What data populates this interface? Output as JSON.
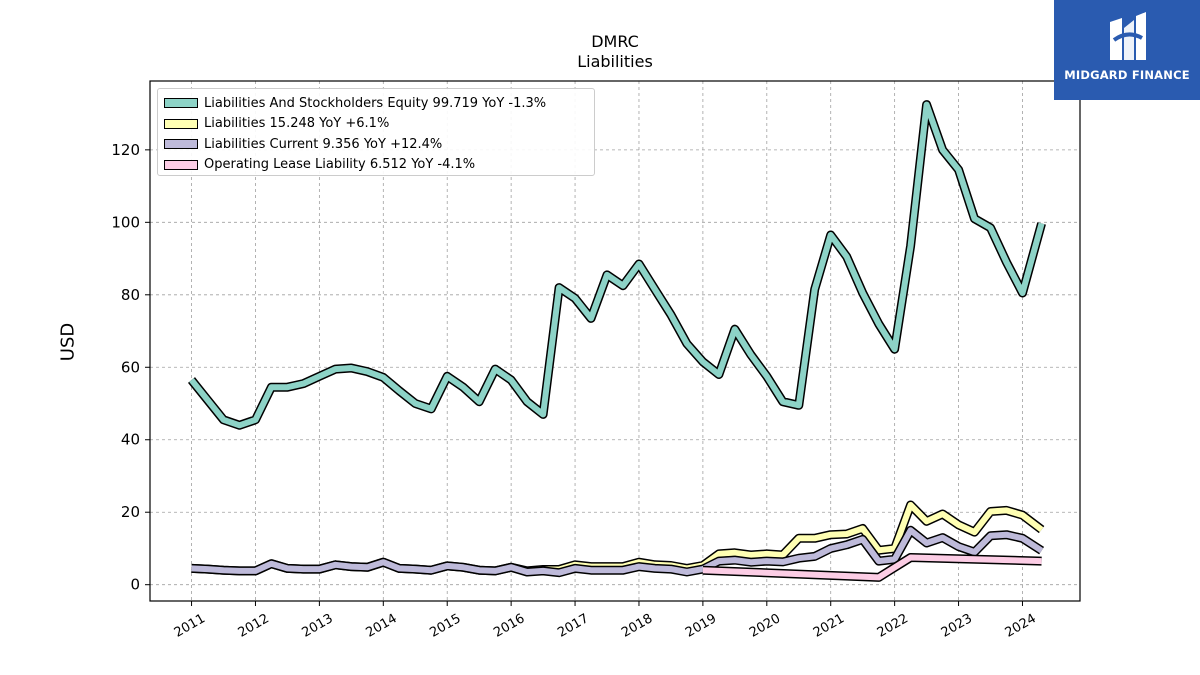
{
  "logo": {
    "text": "MIDGARD FINANCE",
    "icon": "midgard-m-logo-icon",
    "bg_color": "#2a5bb0"
  },
  "chart_data": {
    "type": "line",
    "title": "DMRC",
    "subtitle": "Liabilities",
    "xlabel": "",
    "ylabel": "USD",
    "xlim": [
      2010.35,
      2024.9
    ],
    "ylim": [
      -4.5,
      139
    ],
    "x_ticks": [
      2011,
      2012,
      2013,
      2014,
      2015,
      2016,
      2017,
      2018,
      2019,
      2020,
      2021,
      2022,
      2023,
      2024
    ],
    "x_tick_labels": [
      "2011",
      "2012",
      "2013",
      "2014",
      "2015",
      "2016",
      "2017",
      "2018",
      "2019",
      "2020",
      "2021",
      "2022",
      "2023",
      "2024"
    ],
    "y_ticks": [
      0,
      20,
      40,
      60,
      80,
      100,
      120
    ],
    "y_tick_labels": [
      "0",
      "20",
      "40",
      "60",
      "80",
      "100",
      "120"
    ],
    "grid": true,
    "legend_position": "top-left",
    "series": [
      {
        "name": "Liabilities And Stockholders Equity  99.719 YoY -1.3%",
        "color": "#8dd3c7",
        "points": [
          [
            2011.0,
            56.5
          ],
          [
            2011.25,
            51.0
          ],
          [
            2011.5,
            45.5
          ],
          [
            2011.75,
            44.0
          ],
          [
            2012.0,
            45.5
          ],
          [
            2012.25,
            54.5
          ],
          [
            2012.5,
            54.5
          ],
          [
            2012.75,
            55.5
          ],
          [
            2013.0,
            57.5
          ],
          [
            2013.25,
            59.5
          ],
          [
            2013.5,
            59.8
          ],
          [
            2013.75,
            58.8
          ],
          [
            2014.0,
            57.2
          ],
          [
            2014.25,
            53.5
          ],
          [
            2014.5,
            50.0
          ],
          [
            2014.75,
            48.5
          ],
          [
            2015.0,
            57.5
          ],
          [
            2015.25,
            54.5
          ],
          [
            2015.5,
            50.5
          ],
          [
            2015.75,
            59.5
          ],
          [
            2016.0,
            56.5
          ],
          [
            2016.25,
            50.5
          ],
          [
            2016.5,
            47.0
          ],
          [
            2016.75,
            82.0
          ],
          [
            2017.0,
            79.0
          ],
          [
            2017.25,
            73.5
          ],
          [
            2017.5,
            85.5
          ],
          [
            2017.75,
            82.5
          ],
          [
            2018.0,
            88.5
          ],
          [
            2018.25,
            81.5
          ],
          [
            2018.5,
            74.5
          ],
          [
            2018.75,
            66.5
          ],
          [
            2019.0,
            61.5
          ],
          [
            2019.25,
            58.0
          ],
          [
            2019.5,
            70.5
          ],
          [
            2019.75,
            63.5
          ],
          [
            2020.0,
            57.5
          ],
          [
            2020.25,
            50.5
          ],
          [
            2020.5,
            49.5
          ],
          [
            2020.75,
            81.5
          ],
          [
            2021.0,
            96.5
          ],
          [
            2021.25,
            90.5
          ],
          [
            2021.5,
            80.5
          ],
          [
            2021.75,
            72.0
          ],
          [
            2022.0,
            65.0
          ],
          [
            2022.25,
            93.5
          ],
          [
            2022.5,
            132.5
          ],
          [
            2022.75,
            120.0
          ],
          [
            2023.0,
            114.5
          ],
          [
            2023.25,
            101.0
          ],
          [
            2023.5,
            98.5
          ],
          [
            2023.75,
            89.0
          ],
          [
            2024.0,
            80.5
          ],
          [
            2024.3,
            99.7
          ]
        ]
      },
      {
        "name": "Liabilities  15.248 YoY +6.1%",
        "color": "#ffffb3",
        "points": [
          [
            2011.0,
            4.5
          ],
          [
            2011.25,
            4.3
          ],
          [
            2011.5,
            4.0
          ],
          [
            2011.75,
            3.8
          ],
          [
            2012.0,
            3.8
          ],
          [
            2012.25,
            5.8
          ],
          [
            2012.5,
            4.5
          ],
          [
            2012.75,
            4.3
          ],
          [
            2013.0,
            4.3
          ],
          [
            2013.25,
            5.5
          ],
          [
            2013.5,
            5.0
          ],
          [
            2013.75,
            4.8
          ],
          [
            2014.0,
            6.2
          ],
          [
            2014.25,
            4.5
          ],
          [
            2014.5,
            4.3
          ],
          [
            2014.75,
            4.0
          ],
          [
            2015.0,
            5.2
          ],
          [
            2015.25,
            4.8
          ],
          [
            2015.5,
            4.0
          ],
          [
            2015.75,
            3.8
          ],
          [
            2016.0,
            4.8
          ],
          [
            2016.25,
            3.8
          ],
          [
            2016.5,
            4.2
          ],
          [
            2016.75,
            4.2
          ],
          [
            2017.0,
            5.5
          ],
          [
            2017.25,
            5.0
          ],
          [
            2017.5,
            5.0
          ],
          [
            2017.75,
            5.0
          ],
          [
            2018.0,
            6.2
          ],
          [
            2018.25,
            5.5
          ],
          [
            2018.5,
            5.3
          ],
          [
            2018.75,
            4.5
          ],
          [
            2019.0,
            5.3
          ],
          [
            2019.25,
            8.5
          ],
          [
            2019.5,
            8.8
          ],
          [
            2019.75,
            8.2
          ],
          [
            2020.0,
            8.5
          ],
          [
            2020.25,
            8.2
          ],
          [
            2020.5,
            12.8
          ],
          [
            2020.75,
            12.8
          ],
          [
            2021.0,
            13.8
          ],
          [
            2021.25,
            14.0
          ],
          [
            2021.5,
            15.5
          ],
          [
            2021.75,
            9.5
          ],
          [
            2022.0,
            10.0
          ],
          [
            2022.25,
            22.0
          ],
          [
            2022.5,
            17.5
          ],
          [
            2022.75,
            19.5
          ],
          [
            2023.0,
            16.5
          ],
          [
            2023.25,
            14.5
          ],
          [
            2023.5,
            20.2
          ],
          [
            2023.75,
            20.5
          ],
          [
            2024.0,
            19.2
          ],
          [
            2024.3,
            15.2
          ]
        ]
      },
      {
        "name": "Liabilities Current  9.356 YoY +12.4%",
        "color": "#bebada",
        "points": [
          [
            2011.0,
            4.5
          ],
          [
            2011.25,
            4.3
          ],
          [
            2011.5,
            4.0
          ],
          [
            2011.75,
            3.8
          ],
          [
            2012.0,
            3.8
          ],
          [
            2012.25,
            5.8
          ],
          [
            2012.5,
            4.5
          ],
          [
            2012.75,
            4.3
          ],
          [
            2013.0,
            4.3
          ],
          [
            2013.25,
            5.5
          ],
          [
            2013.5,
            5.0
          ],
          [
            2013.75,
            4.8
          ],
          [
            2014.0,
            6.2
          ],
          [
            2014.25,
            4.5
          ],
          [
            2014.5,
            4.3
          ],
          [
            2014.75,
            4.0
          ],
          [
            2015.0,
            5.2
          ],
          [
            2015.25,
            4.8
          ],
          [
            2015.5,
            4.0
          ],
          [
            2015.75,
            3.8
          ],
          [
            2016.0,
            4.8
          ],
          [
            2016.25,
            3.5
          ],
          [
            2016.5,
            3.8
          ],
          [
            2016.75,
            3.3
          ],
          [
            2017.0,
            4.5
          ],
          [
            2017.25,
            4.0
          ],
          [
            2017.5,
            4.0
          ],
          [
            2017.75,
            4.0
          ],
          [
            2018.0,
            5.0
          ],
          [
            2018.25,
            4.5
          ],
          [
            2018.5,
            4.3
          ],
          [
            2018.75,
            3.5
          ],
          [
            2019.0,
            4.3
          ],
          [
            2019.25,
            6.5
          ],
          [
            2019.5,
            6.8
          ],
          [
            2019.75,
            6.2
          ],
          [
            2020.0,
            6.5
          ],
          [
            2020.25,
            6.3
          ],
          [
            2020.5,
            7.3
          ],
          [
            2020.75,
            7.8
          ],
          [
            2021.0,
            10.0
          ],
          [
            2021.25,
            11.0
          ],
          [
            2021.5,
            12.5
          ],
          [
            2021.75,
            6.5
          ],
          [
            2022.0,
            7.0
          ],
          [
            2022.25,
            15.0
          ],
          [
            2022.5,
            11.5
          ],
          [
            2022.75,
            13.0
          ],
          [
            2023.0,
            10.5
          ],
          [
            2023.25,
            9.0
          ],
          [
            2023.5,
            13.5
          ],
          [
            2023.75,
            13.8
          ],
          [
            2024.0,
            12.8
          ],
          [
            2024.3,
            9.4
          ]
        ]
      },
      {
        "name": "Operating Lease Liability  6.512 YoY -4.1%",
        "color": "#fccde5",
        "points": [
          [
            2019.0,
            4.0
          ],
          [
            2021.75,
            2.0
          ],
          [
            2022.25,
            7.5
          ],
          [
            2024.3,
            6.5
          ]
        ]
      }
    ]
  }
}
